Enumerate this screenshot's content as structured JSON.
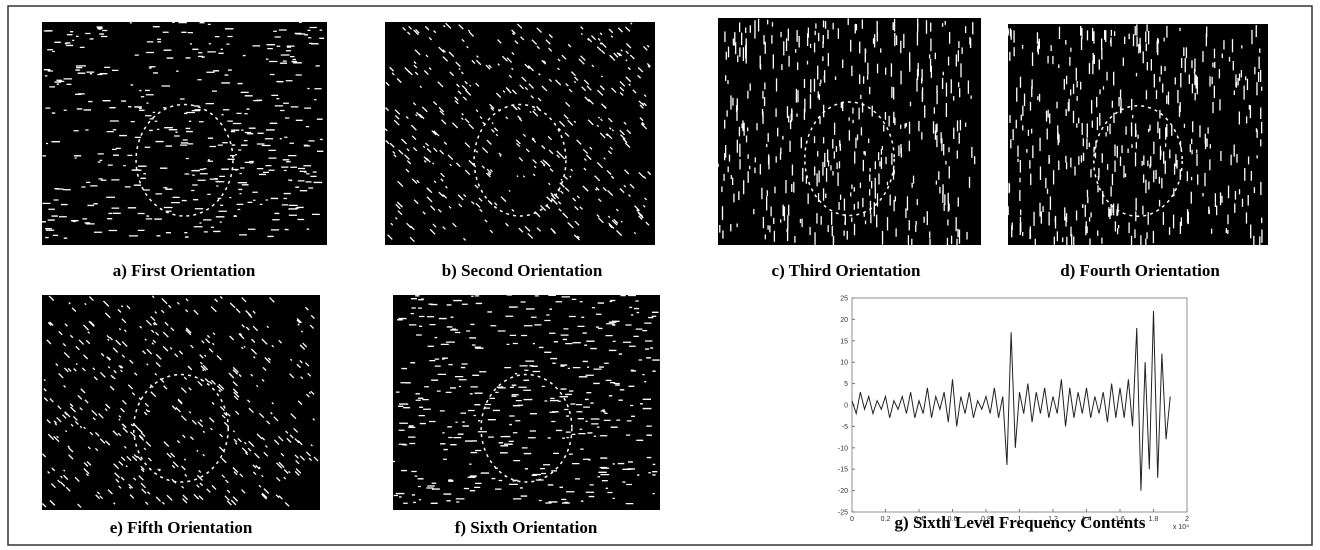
{
  "panels": [
    {
      "caption": "a) First Orientation"
    },
    {
      "caption": "b) Second Orientation"
    },
    {
      "caption": "c) Third Orientation"
    },
    {
      "caption": "d) Fourth Orientation"
    },
    {
      "caption": "e) Fifth Orientation"
    },
    {
      "caption": "f) Sixth Orientation"
    }
  ],
  "chart_data": {
    "type": "line",
    "caption": "g) Sixth Level Frequency Contents",
    "x": [
      0,
      0.025,
      0.05,
      0.075,
      0.1,
      0.125,
      0.15,
      0.175,
      0.2,
      0.225,
      0.25,
      0.275,
      0.3,
      0.325,
      0.35,
      0.375,
      0.4,
      0.425,
      0.45,
      0.475,
      0.5,
      0.525,
      0.55,
      0.575,
      0.6,
      0.625,
      0.65,
      0.675,
      0.7,
      0.725,
      0.75,
      0.775,
      0.8,
      0.825,
      0.85,
      0.875,
      0.9,
      0.925,
      0.95,
      0.975,
      1,
      1.025,
      1.05,
      1.075,
      1.1,
      1.125,
      1.15,
      1.175,
      1.2,
      1.225,
      1.25,
      1.275,
      1.3,
      1.325,
      1.35,
      1.375,
      1.4,
      1.425,
      1.45,
      1.475,
      1.5,
      1.525,
      1.55,
      1.575,
      1.6,
      1.625,
      1.65,
      1.675,
      1.7,
      1.725,
      1.75,
      1.775,
      1.8,
      1.825,
      1.85,
      1.875,
      1.9
    ],
    "series": [
      {
        "color": "#222222",
        "values": [
          1,
          -2,
          3,
          -1,
          2,
          -2,
          1,
          -1,
          2,
          -3,
          1,
          -1,
          2,
          -2,
          3,
          -3,
          1,
          -2,
          4,
          -3,
          2,
          -1,
          3,
          -4,
          6,
          -5,
          2,
          -2,
          3,
          -3,
          1,
          -1,
          2,
          -2,
          4,
          -3,
          2,
          -14,
          17,
          -10,
          3,
          -2,
          5,
          -4,
          3,
          -2,
          4,
          -3,
          2,
          -2,
          6,
          -5,
          4,
          -3,
          3,
          -2,
          4,
          -3,
          2,
          -2,
          3,
          -4,
          5,
          -3,
          4,
          -3,
          6,
          -5,
          18,
          -20,
          10,
          -15,
          22,
          -17,
          12,
          -8,
          2
        ]
      }
    ],
    "xlim": [
      0,
      2
    ],
    "ylim": [
      -25,
      25
    ],
    "xticks": [
      0,
      0.2,
      0.4,
      0.6,
      0.8,
      1,
      1.2,
      1.4,
      1.6,
      1.8,
      2
    ],
    "yticks": [
      -25,
      -20,
      -15,
      -10,
      -5,
      0,
      5,
      10,
      15,
      20,
      25
    ],
    "x_scale_label": "x 10⁴"
  }
}
